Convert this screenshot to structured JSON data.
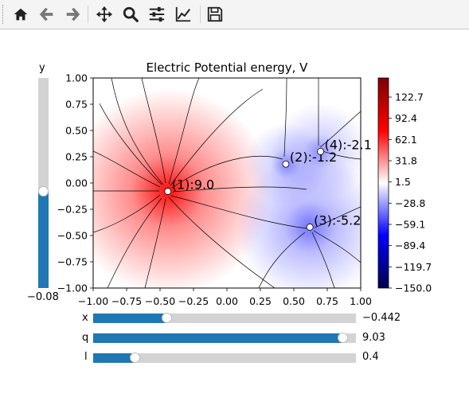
{
  "toolbar": {
    "buttons": [
      {
        "name": "home-button",
        "icon": "home-icon"
      },
      {
        "name": "back-button",
        "icon": "arrow-left-icon"
      },
      {
        "name": "forward-button",
        "icon": "arrow-right-icon"
      },
      {
        "name": "pan-button",
        "icon": "move-icon"
      },
      {
        "name": "zoom-button",
        "icon": "magnifier-icon"
      },
      {
        "name": "configure-subplots-button",
        "icon": "sliders-icon"
      },
      {
        "name": "edit-axis-button",
        "icon": "line-chart-icon"
      },
      {
        "name": "save-button",
        "icon": "floppy-disk-icon"
      }
    ]
  },
  "plot": {
    "title": "Electric Potential energy, V",
    "xticks": [
      "−1.00",
      "−0.75",
      "−0.50",
      "−0.25",
      "0.00",
      "0.25",
      "0.50",
      "0.75",
      "1.00"
    ],
    "yticks": [
      "1.00",
      "0.75",
      "0.50",
      "0.25",
      "0.00",
      "−0.25",
      "−0.50",
      "−0.75",
      "−1.00"
    ],
    "charges": [
      {
        "label": "(1):9.0",
        "x": -0.442,
        "y": -0.08,
        "q": 9.03
      },
      {
        "label": "(2):-1.2",
        "x": 0.44,
        "y": 0.18,
        "q": -1.2
      },
      {
        "label": "(3):-5.2",
        "x": 0.62,
        "y": -0.42,
        "q": -5.2
      },
      {
        "label": "(4):-2.1",
        "x": 0.7,
        "y": 0.3,
        "q": -2.1
      }
    ],
    "colors": {
      "positive": "#ff0000",
      "negative": "#0000ff",
      "neutral": "#ffffff"
    }
  },
  "colorbar": {
    "ticks": [
      "122.7",
      "92.4",
      "62.1",
      "31.8",
      "1.5",
      "−28.8",
      "−59.1",
      "−89.4",
      "−119.7",
      "−150.0"
    ],
    "range": [
      -150,
      150
    ]
  },
  "sliders": {
    "y": {
      "label": "y",
      "value": "−0.08",
      "fraction": 0.46
    },
    "x": {
      "label": "x",
      "value": "−0.442",
      "fraction": 0.279
    },
    "q": {
      "label": "q",
      "value": "9.03",
      "fraction": 0.95
    },
    "l": {
      "label": "l",
      "value": "0.4",
      "fraction": 0.158
    }
  }
}
